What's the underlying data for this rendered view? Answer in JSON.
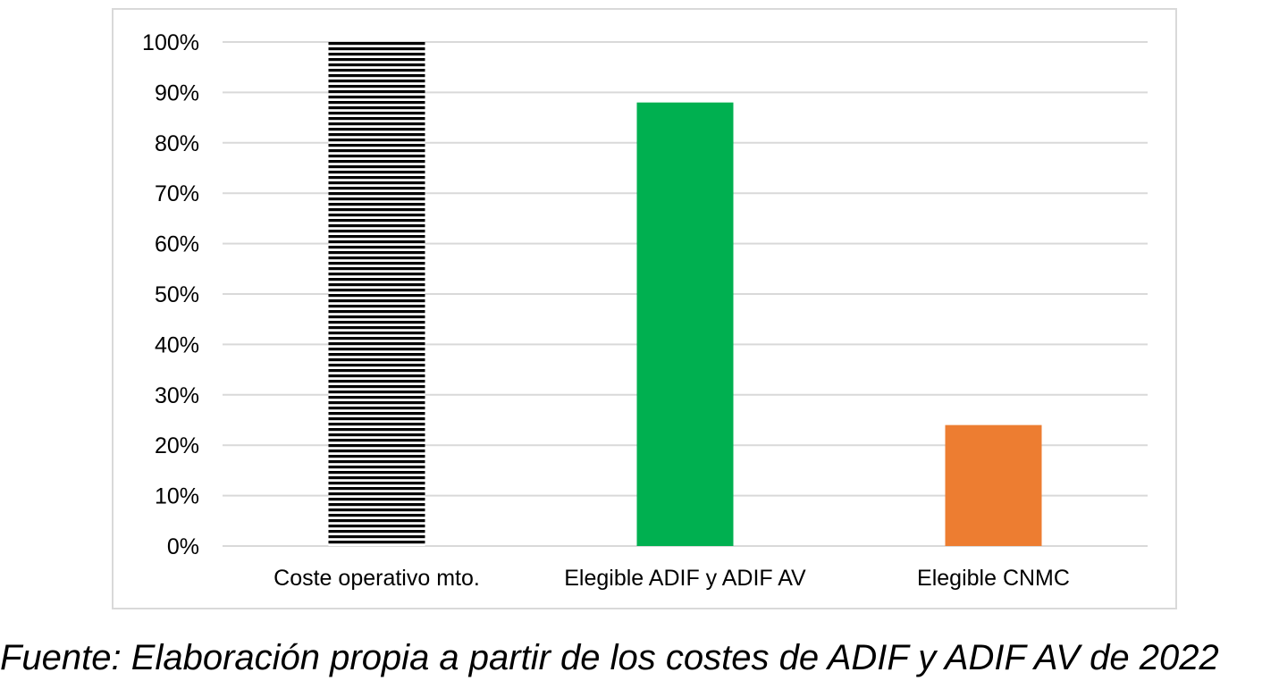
{
  "chart_data": {
    "type": "bar",
    "categories": [
      "Coste operativo mto.",
      "Elegible ADIF y ADIF AV",
      "Elegible CNMC"
    ],
    "values": [
      1.0,
      0.88,
      0.24
    ],
    "bar_colors": [
      "#000000",
      "#00b050",
      "#ed7d31"
    ],
    "bar_fills": [
      "horizontal-stripes",
      "solid",
      "solid"
    ],
    "y_ticks": [
      "0%",
      "10%",
      "20%",
      "30%",
      "40%",
      "50%",
      "60%",
      "70%",
      "80%",
      "90%",
      "100%"
    ],
    "ylim": [
      0,
      1
    ],
    "grid": true,
    "grid_color": "#d9d9d9",
    "legend": "none",
    "title": "",
    "xlabel": "",
    "ylabel": ""
  },
  "caption": "Fuente: Elaboración propia a partir de los costes de ADIF y ADIF AV de 2022"
}
